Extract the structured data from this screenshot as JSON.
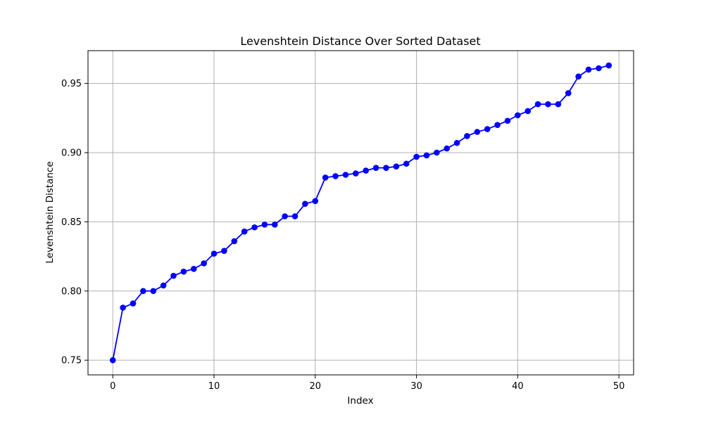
{
  "chart_data": {
    "type": "line",
    "title": "Levenshtein Distance Over Sorted Dataset",
    "xlabel": "Index",
    "ylabel": "Levenshtein Distance",
    "xlim": [
      -2.45,
      51.45
    ],
    "ylim": [
      0.7394,
      0.9737
    ],
    "xticks": [
      0,
      10,
      20,
      30,
      40,
      50
    ],
    "yticks": [
      0.75,
      0.8,
      0.85,
      0.9,
      0.95
    ],
    "grid": true,
    "legend": "none",
    "series": [
      {
        "color": "#0000ff",
        "marker": "circle",
        "x": [
          0,
          1,
          2,
          3,
          4,
          5,
          6,
          7,
          8,
          9,
          10,
          11,
          12,
          13,
          14,
          15,
          16,
          17,
          18,
          19,
          20,
          21,
          22,
          23,
          24,
          25,
          26,
          27,
          28,
          29,
          30,
          31,
          32,
          33,
          34,
          35,
          36,
          37,
          38,
          39,
          40,
          41,
          42,
          43,
          44,
          45,
          46,
          47,
          48,
          49
        ],
        "y": [
          0.75,
          0.788,
          0.791,
          0.8,
          0.8,
          0.804,
          0.811,
          0.814,
          0.816,
          0.82,
          0.827,
          0.829,
          0.836,
          0.843,
          0.846,
          0.848,
          0.848,
          0.854,
          0.854,
          0.863,
          0.865,
          0.882,
          0.883,
          0.884,
          0.885,
          0.887,
          0.889,
          0.889,
          0.89,
          0.892,
          0.897,
          0.898,
          0.9,
          0.903,
          0.907,
          0.912,
          0.915,
          0.917,
          0.92,
          0.923,
          0.927,
          0.93,
          0.935,
          0.935,
          0.935,
          0.943,
          0.955,
          0.96,
          0.961,
          0.963
        ]
      }
    ]
  }
}
